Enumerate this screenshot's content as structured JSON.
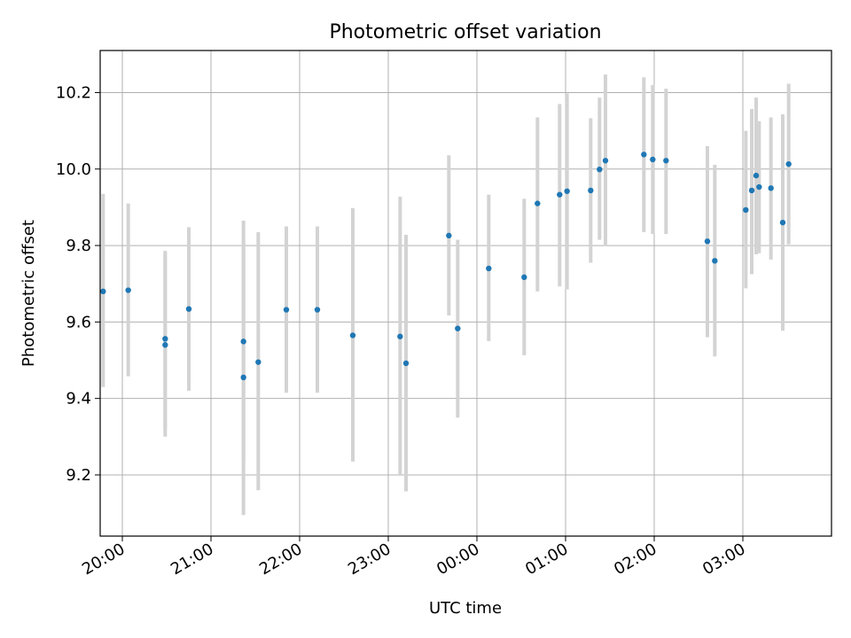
{
  "chart_data": {
    "type": "scatter",
    "title": "Photometric offset variation",
    "xlabel": "UTC time",
    "ylabel": "Photometric offset",
    "x_unit": "UTC time (HH:MM), crossing midnight",
    "xlim": [
      "19:45",
      "04:00"
    ],
    "ylim": [
      9.04,
      10.31
    ],
    "xticks": [
      "20:00",
      "21:00",
      "22:00",
      "23:00",
      "00:00",
      "01:00",
      "02:00",
      "03:00"
    ],
    "yticks": [
      "9.2",
      "9.4",
      "9.6",
      "9.8",
      "10.0",
      "10.2"
    ],
    "grid": true,
    "point_color": "#1f77b4",
    "errorbar_color": "#d3d3d3",
    "points": [
      {
        "t": "19:47",
        "y": 9.68,
        "lo": 9.43,
        "hi": 9.935
      },
      {
        "t": "20:04",
        "y": 9.683,
        "lo": 9.458,
        "hi": 9.91
      },
      {
        "t": "20:29",
        "y": 9.556,
        "lo": 9.3,
        "hi": 9.786
      },
      {
        "t": "20:29",
        "y": 9.54,
        "lo": 9.32,
        "hi": 9.78
      },
      {
        "t": "20:45",
        "y": 9.634,
        "lo": 9.42,
        "hi": 9.848
      },
      {
        "t": "21:22",
        "y": 9.549,
        "lo": 9.232,
        "hi": 9.865
      },
      {
        "t": "21:22",
        "y": 9.455,
        "lo": 9.095,
        "hi": 9.81
      },
      {
        "t": "21:32",
        "y": 9.495,
        "lo": 9.16,
        "hi": 9.835
      },
      {
        "t": "21:51",
        "y": 9.632,
        "lo": 9.415,
        "hi": 9.85
      },
      {
        "t": "22:12",
        "y": 9.632,
        "lo": 9.415,
        "hi": 9.85
      },
      {
        "t": "22:36",
        "y": 9.565,
        "lo": 9.235,
        "hi": 9.898
      },
      {
        "t": "23:08",
        "y": 9.562,
        "lo": 9.2,
        "hi": 9.928
      },
      {
        "t": "23:12",
        "y": 9.492,
        "lo": 9.157,
        "hi": 9.828
      },
      {
        "t": "23:41",
        "y": 9.826,
        "lo": 9.617,
        "hi": 10.036
      },
      {
        "t": "23:47",
        "y": 9.583,
        "lo": 9.35,
        "hi": 9.815
      },
      {
        "t": "00:08",
        "y": 9.74,
        "lo": 9.55,
        "hi": 9.933
      },
      {
        "t": "00:32",
        "y": 9.717,
        "lo": 9.513,
        "hi": 9.922
      },
      {
        "t": "00:41",
        "y": 9.91,
        "lo": 9.68,
        "hi": 10.135
      },
      {
        "t": "00:56",
        "y": 9.933,
        "lo": 9.693,
        "hi": 10.17
      },
      {
        "t": "01:01",
        "y": 9.942,
        "lo": 9.685,
        "hi": 10.198
      },
      {
        "t": "01:17",
        "y": 9.944,
        "lo": 9.755,
        "hi": 10.133
      },
      {
        "t": "01:23",
        "y": 9.999,
        "lo": 9.815,
        "hi": 10.187
      },
      {
        "t": "01:27",
        "y": 10.022,
        "lo": 9.798,
        "hi": 10.247
      },
      {
        "t": "01:53",
        "y": 10.038,
        "lo": 9.835,
        "hi": 10.24
      },
      {
        "t": "01:59",
        "y": 10.025,
        "lo": 9.83,
        "hi": 10.22
      },
      {
        "t": "02:08",
        "y": 10.022,
        "lo": 9.83,
        "hi": 10.21
      },
      {
        "t": "02:36",
        "y": 9.811,
        "lo": 9.56,
        "hi": 10.06
      },
      {
        "t": "02:41",
        "y": 9.76,
        "lo": 9.51,
        "hi": 10.011
      },
      {
        "t": "03:02",
        "y": 9.893,
        "lo": 9.688,
        "hi": 10.1
      },
      {
        "t": "03:06",
        "y": 9.944,
        "lo": 9.725,
        "hi": 10.157
      },
      {
        "t": "03:09",
        "y": 9.983,
        "lo": 9.777,
        "hi": 10.187
      },
      {
        "t": "03:11",
        "y": 9.953,
        "lo": 9.78,
        "hi": 10.125
      },
      {
        "t": "03:19",
        "y": 9.95,
        "lo": 9.763,
        "hi": 10.135
      },
      {
        "t": "03:27",
        "y": 9.86,
        "lo": 9.577,
        "hi": 10.143
      },
      {
        "t": "03:31",
        "y": 10.013,
        "lo": 9.803,
        "hi": 10.223
      }
    ]
  }
}
